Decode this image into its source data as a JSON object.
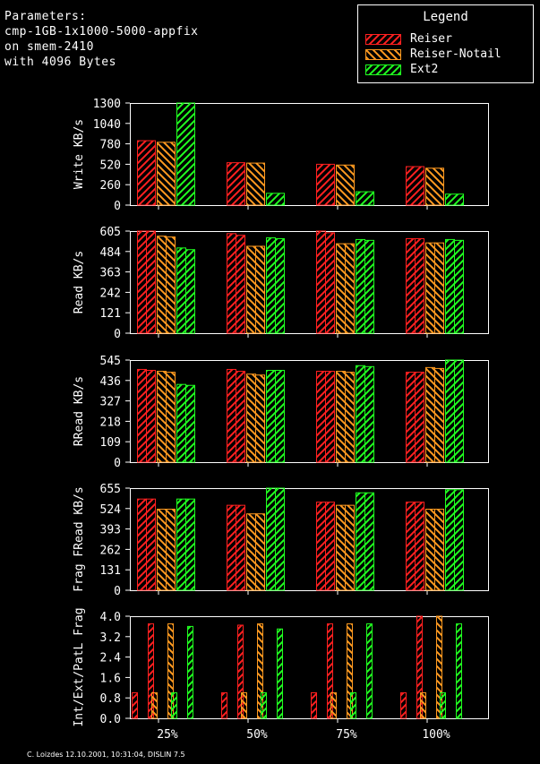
{
  "parameters": {
    "heading": "Parameters:",
    "lines": [
      "cmp-1GB-1x1000-5000-appfix",
      "on smem-2410",
      "with 4096 Bytes"
    ]
  },
  "legend": {
    "title": "Legend",
    "items": [
      {
        "label": "Reiser",
        "color": "#ff2020"
      },
      {
        "label": "Reiser-Notail",
        "color": "#ff9a20"
      },
      {
        "label": "Ext2",
        "color": "#20ff20"
      }
    ]
  },
  "footer": "C. Loizdes 12.10.2001, 10:31:04, DISLIN 7.5",
  "chart_data": [
    {
      "type": "bar",
      "ylabel": "Write KB/s",
      "categories": [
        "25%",
        "50%",
        "75%",
        "100%"
      ],
      "yticks": [
        "0",
        "260",
        "520",
        "780",
        "1040",
        "1300"
      ],
      "ylim": [
        0,
        1300
      ],
      "bars_per_series": 1,
      "series": [
        {
          "name": "Reiser",
          "values": [
            [
              820
            ],
            [
              540
            ],
            [
              520
            ],
            [
              490
            ]
          ]
        },
        {
          "name": "Reiser-Notail",
          "values": [
            [
              800
            ],
            [
              535
            ],
            [
              510
            ],
            [
              470
            ]
          ]
        },
        {
          "name": "Ext2",
          "values": [
            [
              1300
            ],
            [
              150
            ],
            [
              170
            ],
            [
              140
            ]
          ]
        }
      ]
    },
    {
      "type": "bar",
      "ylabel": "Read KB/s",
      "categories": [
        "25%",
        "50%",
        "75%",
        "100%"
      ],
      "yticks": [
        "0",
        "121",
        "242",
        "363",
        "484",
        "605"
      ],
      "ylim": [
        0,
        605
      ],
      "bars_per_series": 2,
      "series": [
        {
          "name": "Reiser",
          "values": [
            [
              605,
              605
            ],
            [
              590,
              580
            ],
            [
              605,
              595
            ],
            [
              560,
              560
            ]
          ]
        },
        {
          "name": "Reiser-Notail",
          "values": [
            [
              575,
              570
            ],
            [
              515,
              515
            ],
            [
              530,
              530
            ],
            [
              535,
              535
            ]
          ]
        },
        {
          "name": "Ext2",
          "values": [
            [
              505,
              495
            ],
            [
              565,
              560
            ],
            [
              555,
              550
            ],
            [
              555,
              550
            ]
          ]
        }
      ]
    },
    {
      "type": "bar",
      "ylabel": "RRead KB/s",
      "categories": [
        "25%",
        "50%",
        "75%",
        "100%"
      ],
      "yticks": [
        "0",
        "109",
        "218",
        "327",
        "436",
        "545"
      ],
      "ylim": [
        0,
        545
      ],
      "bars_per_series": 2,
      "series": [
        {
          "name": "Reiser",
          "values": [
            [
              495,
              490
            ],
            [
              495,
              485
            ],
            [
              485,
              485
            ],
            [
              480,
              480
            ]
          ]
        },
        {
          "name": "Reiser-Notail",
          "values": [
            [
              485,
              480
            ],
            [
              470,
              465
            ],
            [
              485,
              480
            ],
            [
              505,
              500
            ]
          ]
        },
        {
          "name": "Ext2",
          "values": [
            [
              415,
              410
            ],
            [
              490,
              490
            ],
            [
              515,
              510
            ],
            [
              545,
              545
            ]
          ]
        }
      ]
    },
    {
      "type": "bar",
      "ylabel": "Frag FRead KB/s",
      "categories": [
        "25%",
        "50%",
        "75%",
        "100%"
      ],
      "yticks": [
        "0",
        "131",
        "262",
        "393",
        "524",
        "655"
      ],
      "ylim": [
        0,
        655
      ],
      "bars_per_series": 2,
      "series": [
        {
          "name": "Reiser",
          "values": [
            [
              585,
              585
            ],
            [
              545,
              545
            ],
            [
              565,
              565
            ],
            [
              565,
              565
            ]
          ]
        },
        {
          "name": "Reiser-Notail",
          "values": [
            [
              520,
              520
            ],
            [
              490,
              490
            ],
            [
              545,
              545
            ],
            [
              520,
              520
            ]
          ]
        },
        {
          "name": "Ext2",
          "values": [
            [
              585,
              585
            ],
            [
              655,
              655
            ],
            [
              625,
              625
            ],
            [
              645,
              645
            ]
          ]
        }
      ]
    },
    {
      "type": "bar",
      "ylabel": "Int/Ext/PatL Frag",
      "categories": [
        "25%",
        "50%",
        "75%",
        "100%"
      ],
      "yticks": [
        "0.0",
        "0.8",
        "1.6",
        "2.4",
        "3.2",
        "4.0"
      ],
      "ylim": [
        0,
        4.0
      ],
      "bars_per_series": 3,
      "series": [
        {
          "name": "Reiser",
          "values": [
            [
              1.0,
              0,
              3.7
            ],
            [
              1.0,
              0,
              3.65
            ],
            [
              1.0,
              0,
              3.7
            ],
            [
              1.0,
              0,
              4.0
            ]
          ]
        },
        {
          "name": "Reiser-Notail",
          "values": [
            [
              1.0,
              0,
              3.7
            ],
            [
              1.0,
              0,
              3.7
            ],
            [
              1.0,
              0,
              3.7
            ],
            [
              1.0,
              0,
              4.0
            ]
          ]
        },
        {
          "name": "Ext2",
          "values": [
            [
              1.0,
              0,
              3.6
            ],
            [
              1.0,
              0,
              3.5
            ],
            [
              1.0,
              0,
              3.7
            ],
            [
              1.0,
              0,
              3.7
            ]
          ]
        }
      ]
    }
  ]
}
